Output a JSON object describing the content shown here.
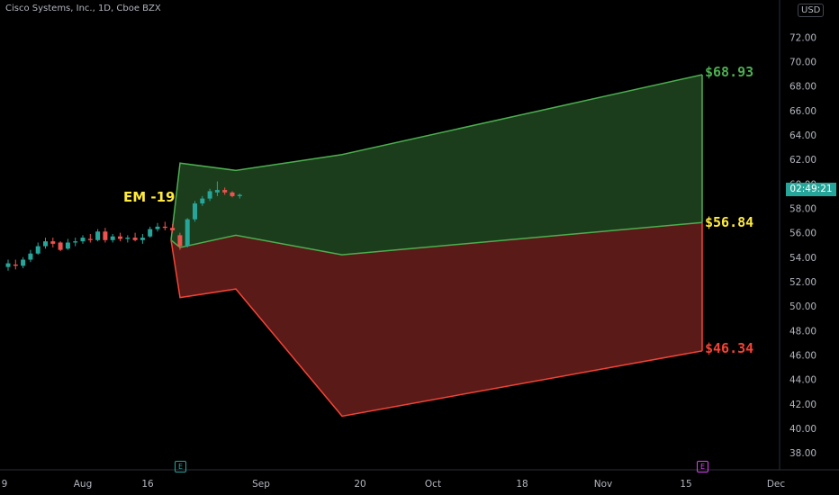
{
  "header": {
    "symbol": "Cisco Systems, Inc., 1D, Cboe BZX",
    "currency": "USD"
  },
  "price_tag": "02:49:21",
  "annotations": {
    "em_label": "EM -19",
    "upper": "$68.93",
    "middle": "$56.84",
    "lower": "$46.34"
  },
  "earnings": [
    {
      "label": "E",
      "color": "#26a69a"
    },
    {
      "label": "E",
      "color": "#e040fb"
    }
  ],
  "colors": {
    "up": "#26a69a",
    "down": "#ef5350",
    "green_zone": "#1b3d1b",
    "green_line": "#4caf50",
    "red_zone": "#5a1a18",
    "red_line": "#f44336",
    "upper_label": "#4caf50",
    "middle_label": "#ffeb3b",
    "lower_label": "#f44336"
  },
  "chart_data": {
    "type": "candlestick",
    "y_ticks": [
      "72.00",
      "70.00",
      "68.00",
      "66.00",
      "64.00",
      "62.00",
      "60.00",
      "58.00",
      "56.00",
      "54.00",
      "52.00",
      "50.00",
      "48.00",
      "46.00",
      "44.00",
      "42.00",
      "40.00",
      "38.00"
    ],
    "x_ticks": [
      "9",
      "Aug",
      "16",
      "Sep",
      "20",
      "Oct",
      "18",
      "Nov",
      "15",
      "Dec"
    ],
    "ylim": [
      37.2,
      73.2
    ],
    "candles": [
      {
        "o": 53.2,
        "h": 53.8,
        "l": 52.9,
        "c": 53.5
      },
      {
        "o": 53.4,
        "h": 53.8,
        "l": 53.0,
        "c": 53.3
      },
      {
        "o": 53.3,
        "h": 54.0,
        "l": 53.1,
        "c": 53.8
      },
      {
        "o": 53.8,
        "h": 54.6,
        "l": 53.6,
        "c": 54.3
      },
      {
        "o": 54.3,
        "h": 55.2,
        "l": 54.2,
        "c": 54.9
      },
      {
        "o": 54.9,
        "h": 55.6,
        "l": 54.7,
        "c": 55.3
      },
      {
        "o": 55.3,
        "h": 55.6,
        "l": 54.8,
        "c": 55.1
      },
      {
        "o": 55.2,
        "h": 55.3,
        "l": 54.5,
        "c": 54.6
      },
      {
        "o": 54.7,
        "h": 55.5,
        "l": 54.6,
        "c": 55.2
      },
      {
        "o": 55.2,
        "h": 55.6,
        "l": 54.9,
        "c": 55.3
      },
      {
        "o": 55.3,
        "h": 55.8,
        "l": 55.1,
        "c": 55.6
      },
      {
        "o": 55.5,
        "h": 55.9,
        "l": 55.2,
        "c": 55.4
      },
      {
        "o": 55.4,
        "h": 56.3,
        "l": 55.3,
        "c": 56.1
      },
      {
        "o": 56.1,
        "h": 56.4,
        "l": 55.2,
        "c": 55.4
      },
      {
        "o": 55.4,
        "h": 55.9,
        "l": 55.2,
        "c": 55.7
      },
      {
        "o": 55.7,
        "h": 56.0,
        "l": 55.3,
        "c": 55.5
      },
      {
        "o": 55.5,
        "h": 55.8,
        "l": 55.2,
        "c": 55.6
      },
      {
        "o": 55.6,
        "h": 56.0,
        "l": 55.3,
        "c": 55.4
      },
      {
        "o": 55.4,
        "h": 55.9,
        "l": 55.1,
        "c": 55.6
      },
      {
        "o": 55.7,
        "h": 56.5,
        "l": 55.6,
        "c": 56.3
      },
      {
        "o": 56.3,
        "h": 56.8,
        "l": 56.1,
        "c": 56.5
      },
      {
        "o": 56.5,
        "h": 56.9,
        "l": 56.2,
        "c": 56.4
      },
      {
        "o": 56.4,
        "h": 56.7,
        "l": 56.0,
        "c": 56.2
      },
      {
        "o": 55.8,
        "h": 56.0,
        "l": 54.6,
        "c": 54.9
      },
      {
        "o": 54.9,
        "h": 57.2,
        "l": 54.8,
        "c": 57.1
      },
      {
        "o": 57.1,
        "h": 58.6,
        "l": 56.9,
        "c": 58.4
      },
      {
        "o": 58.4,
        "h": 59.0,
        "l": 58.2,
        "c": 58.8
      },
      {
        "o": 58.8,
        "h": 59.6,
        "l": 58.6,
        "c": 59.4
      },
      {
        "o": 59.3,
        "h": 60.2,
        "l": 59.0,
        "c": 59.5
      },
      {
        "o": 59.5,
        "h": 59.7,
        "l": 59.1,
        "c": 59.3
      },
      {
        "o": 59.3,
        "h": 59.4,
        "l": 58.9,
        "c": 59.0
      },
      {
        "o": 59.0,
        "h": 59.2,
        "l": 58.8,
        "c": 59.1
      }
    ],
    "green_zone_upper": [
      [
        0,
        55.4
      ],
      [
        1,
        61.7
      ],
      [
        2,
        61.1
      ],
      [
        3,
        62.4
      ],
      [
        4,
        68.93
      ]
    ],
    "zone_middle": [
      [
        0,
        55.4
      ],
      [
        1,
        54.8
      ],
      [
        2,
        55.8
      ],
      [
        3,
        54.2
      ],
      [
        4,
        56.84
      ]
    ],
    "red_zone_lower": [
      [
        0,
        55.4
      ],
      [
        1,
        50.7
      ],
      [
        2,
        51.4
      ],
      [
        3,
        41.0
      ],
      [
        4,
        46.34
      ]
    ]
  }
}
